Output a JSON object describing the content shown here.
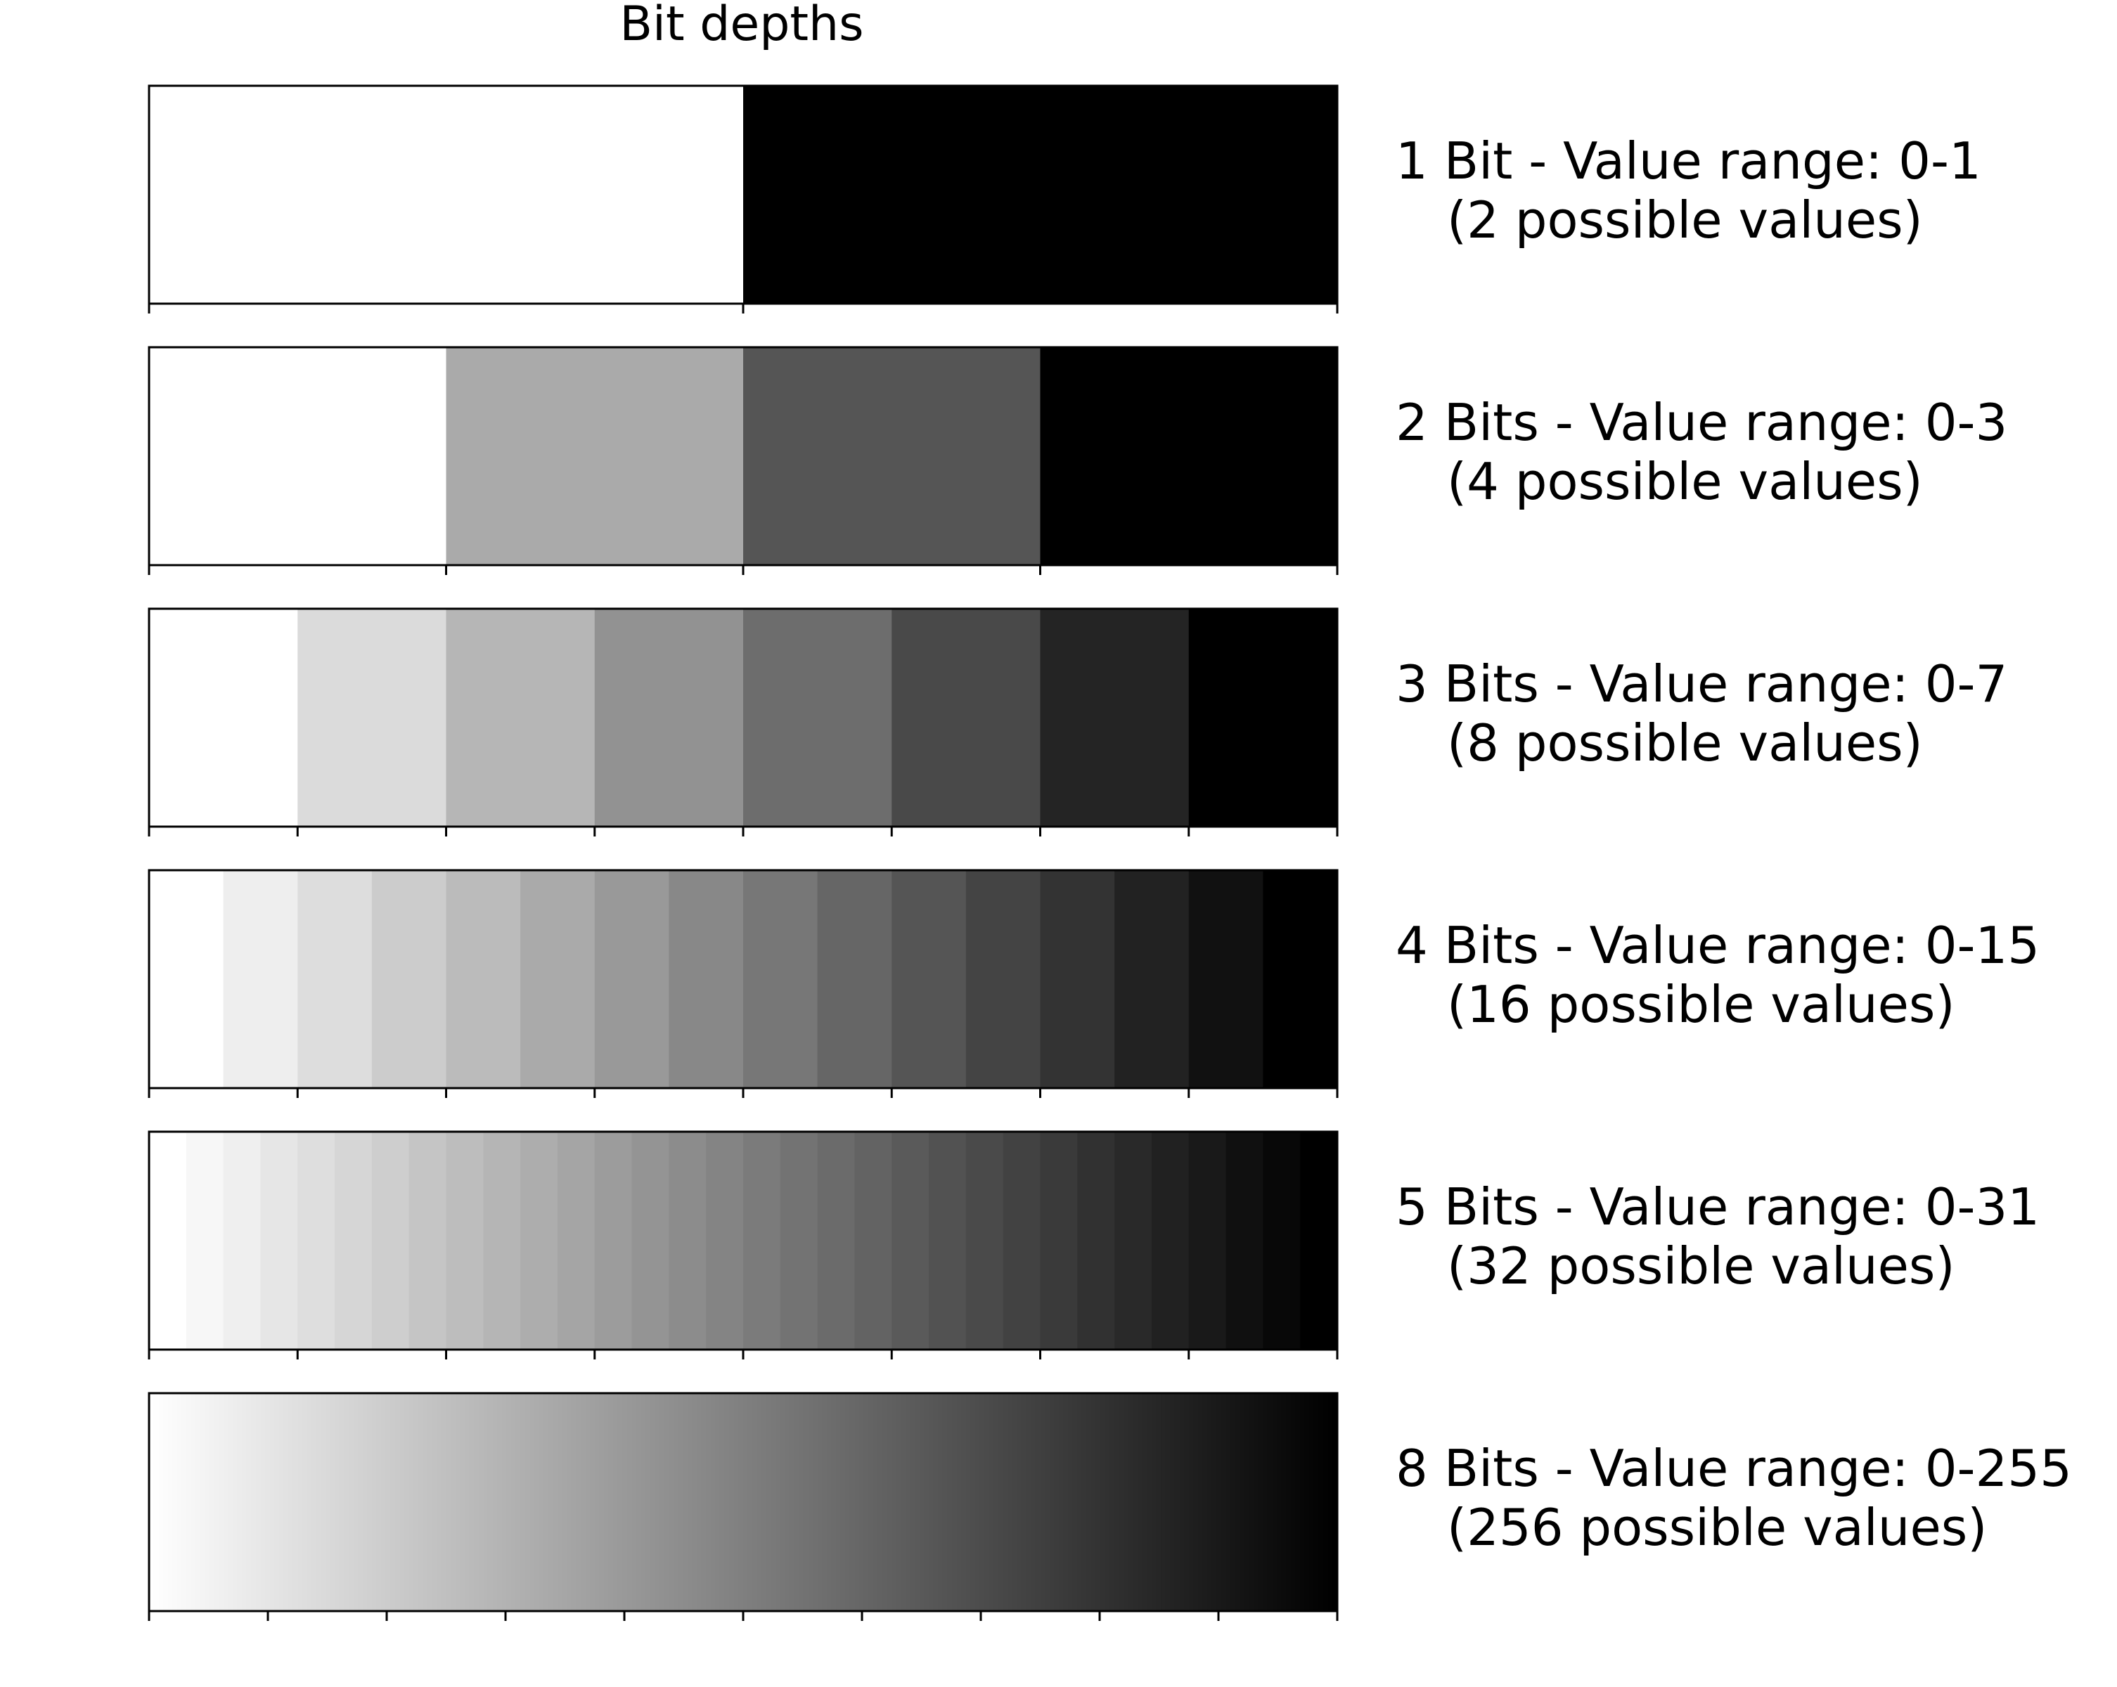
{
  "figure": {
    "title": "Bit depths"
  },
  "chart_data": {
    "type": "heatmap",
    "title": "Bit depths",
    "colormap": "grayscale, white to black",
    "panels": [
      {
        "bits": 1,
        "levels": 2,
        "line1": "1 Bit - Value range: 0-1",
        "line2": "(2 possible values)"
      },
      {
        "bits": 2,
        "levels": 4,
        "line1": "2 Bits - Value range: 0-3",
        "line2": "(4 possible values)"
      },
      {
        "bits": 3,
        "levels": 8,
        "line1": "3 Bits - Value range: 0-7",
        "line2": "(8 possible values)"
      },
      {
        "bits": 4,
        "levels": 16,
        "line1": "4 Bits - Value range: 0-15",
        "line2": "(16 possible values)"
      },
      {
        "bits": 5,
        "levels": 32,
        "line1": "5 Bits - Value range: 0-31",
        "line2": "(32 possible values)"
      },
      {
        "bits": 8,
        "levels": 256,
        "line1": "8 Bits - Value range: 0-255",
        "line2": "(256 possible values)"
      }
    ]
  }
}
